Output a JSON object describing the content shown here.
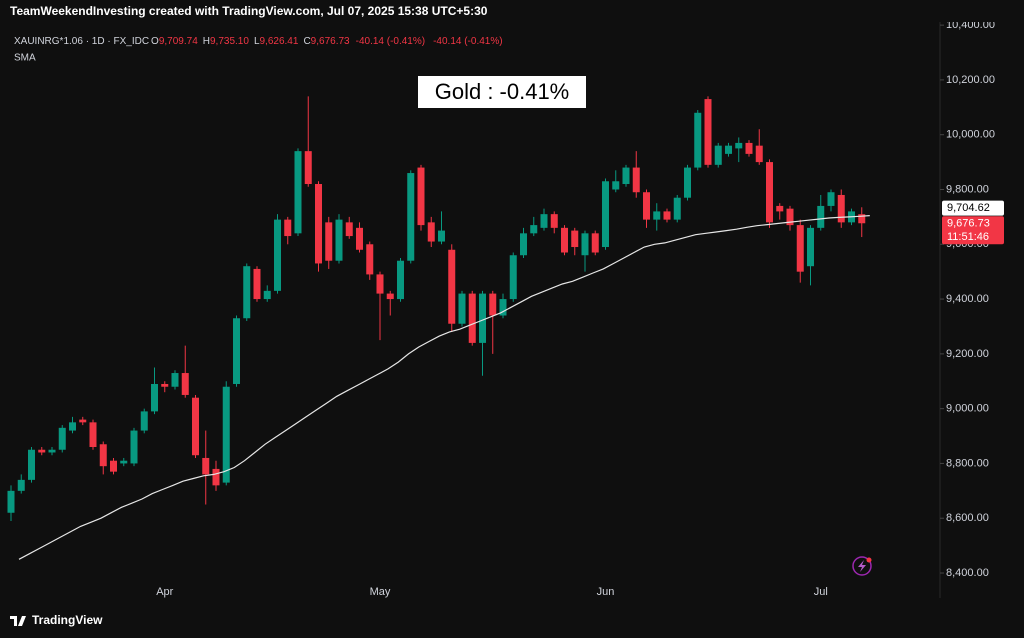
{
  "header": "TeamWeekendInvesting created with TradingView.com, Jul 07, 2025 15:38 UTC+5:30",
  "legend": {
    "symbol": "XAUINRG*1.06 · 1D · FX_IDC",
    "items": [
      {
        "key": "O",
        "value": "9,709.74"
      },
      {
        "key": "H",
        "value": "9,735.10"
      },
      {
        "key": "L",
        "value": "9,626.41"
      },
      {
        "key": "C",
        "value": "9,676.73"
      }
    ],
    "change": "-40.14 (-0.41%)",
    "change2": "-40.14 (-0.41%)",
    "indicator": "SMA"
  },
  "footer": "TradingView",
  "chart_data": {
    "type": "candlestick",
    "annotation": "Gold : -0.41%",
    "categories": [
      null,
      null,
      null,
      null,
      null,
      null,
      null,
      null,
      null,
      null,
      null,
      null,
      null,
      null,
      null,
      "Apr",
      null,
      null,
      null,
      null,
      null,
      null,
      null,
      null,
      null,
      null,
      null,
      null,
      null,
      null,
      null,
      null,
      null,
      null,
      null,
      null,
      "May",
      null,
      null,
      null,
      null,
      null,
      null,
      null,
      null,
      null,
      null,
      null,
      null,
      null,
      null,
      null,
      null,
      null,
      null,
      null,
      null,
      null,
      "Jun",
      null,
      null,
      null,
      null,
      null,
      null,
      null,
      null,
      null,
      null,
      null,
      null,
      null,
      null,
      null,
      null,
      null,
      null,
      null,
      null,
      "Jul",
      null,
      null,
      null,
      null
    ],
    "open": [
      8620,
      8700,
      8740,
      8850,
      8840,
      8850,
      8920,
      8960,
      8950,
      8870,
      8810,
      8800,
      8800,
      8920,
      8990,
      9090,
      9080,
      9130,
      9040,
      8820,
      8780,
      8730,
      9090,
      9330,
      9510,
      9400,
      9430,
      9690,
      9640,
      9940,
      9820,
      9680,
      9540,
      9680,
      9660,
      9600,
      9490,
      9420,
      9400,
      9540,
      9880,
      9680,
      9610,
      9580,
      9310,
      9420,
      9240,
      9420,
      9340,
      9400,
      9560,
      9640,
      9660,
      9710,
      9660,
      9650,
      9560,
      9640,
      9590,
      9800,
      9820,
      9880,
      9790,
      9690,
      9720,
      9690,
      9770,
      9880,
      10130,
      9890,
      9930,
      9950,
      9970,
      9960,
      9900,
      9740,
      9730,
      9670,
      9520,
      9660,
      9740,
      9780,
      9680,
      9709.74
    ],
    "high": [
      8720,
      8760,
      8860,
      8860,
      8860,
      8940,
      8970,
      8970,
      8960,
      8880,
      8820,
      8820,
      8930,
      9000,
      9150,
      9100,
      9140,
      9230,
      9050,
      8920,
      8810,
      9100,
      9340,
      9530,
      9520,
      9450,
      9710,
      9700,
      9950,
      10140,
      9830,
      9700,
      9710,
      9700,
      9680,
      9610,
      9500,
      9430,
      9550,
      9870,
      9890,
      9700,
      9720,
      9600,
      9430,
      9430,
      9430,
      9430,
      9420,
      9570,
      9660,
      9700,
      9730,
      9720,
      9670,
      9660,
      9650,
      9650,
      9840,
      9870,
      9890,
      9940,
      9800,
      9750,
      9730,
      9780,
      9890,
      10090,
      10140,
      9970,
      9970,
      9990,
      9980,
      10020,
      9910,
      9750,
      9740,
      9690,
      9670,
      9780,
      9800,
      9800,
      9730,
      9735.1
    ],
    "low": [
      8590,
      8690,
      8730,
      8830,
      8830,
      8840,
      8910,
      8940,
      8850,
      8760,
      8760,
      8790,
      8790,
      8910,
      8980,
      9060,
      9070,
      9040,
      8820,
      8650,
      8700,
      8720,
      9080,
      9320,
      9390,
      9390,
      9420,
      9600,
      9630,
      9810,
      9500,
      9510,
      9530,
      9620,
      9570,
      9470,
      9250,
      9340,
      9390,
      9530,
      9650,
      9590,
      9600,
      9280,
      9300,
      9230,
      9120,
      9200,
      9330,
      9390,
      9550,
      9630,
      9650,
      9640,
      9560,
      9560,
      9500,
      9560,
      9580,
      9790,
      9810,
      9770,
      9660,
      9650,
      9680,
      9680,
      9760,
      9870,
      9880,
      9880,
      9920,
      9900,
      9920,
      9890,
      9660,
      9690,
      9650,
      9460,
      9450,
      9650,
      9720,
      9660,
      9670,
      9626.41
    ],
    "close": [
      8700,
      8740,
      8850,
      8840,
      8850,
      8930,
      8950,
      8950,
      8860,
      8790,
      8770,
      8810,
      8920,
      8990,
      9090,
      9080,
      9130,
      9050,
      8830,
      8760,
      8720,
      9080,
      9330,
      9520,
      9400,
      9430,
      9690,
      9630,
      9940,
      9820,
      9530,
      9540,
      9690,
      9630,
      9580,
      9490,
      9420,
      9400,
      9540,
      9860,
      9670,
      9610,
      9650,
      9310,
      9420,
      9240,
      9420,
      9340,
      9400,
      9560,
      9640,
      9670,
      9710,
      9660,
      9570,
      9590,
      9640,
      9570,
      9830,
      9830,
      9880,
      9790,
      9690,
      9720,
      9690,
      9770,
      9880,
      10080,
      9890,
      9960,
      9960,
      9970,
      9930,
      9900,
      9680,
      9720,
      9670,
      9500,
      9660,
      9740,
      9790,
      9680,
      9720,
      9676.73
    ],
    "up_color": "#089981",
    "down_color": "#f23645",
    "sma": {
      "color": "#e6e6e6",
      "values": [
        8450,
        8470,
        8490,
        8510,
        8530,
        8550,
        8570,
        8585,
        8600,
        8620,
        8640,
        8655,
        8670,
        8690,
        8705,
        8720,
        8735,
        8745,
        8755,
        8760,
        8770,
        8785,
        8810,
        8840,
        8870,
        8895,
        8920,
        8945,
        8970,
        8995,
        9020,
        9045,
        9065,
        9085,
        9105,
        9125,
        9145,
        9170,
        9200,
        9225,
        9245,
        9265,
        9280,
        9290,
        9305,
        9320,
        9335,
        9350,
        9370,
        9390,
        9410,
        9425,
        9440,
        9455,
        9465,
        9480,
        9495,
        9510,
        9530,
        9550,
        9570,
        9590,
        9600,
        9605,
        9615,
        9625,
        9635,
        9640,
        9645,
        9650,
        9655,
        9662,
        9668,
        9672,
        9676,
        9680,
        9684,
        9688,
        9692,
        9696,
        9698,
        9700,
        9702,
        9704.62
      ]
    },
    "price_labels": [
      {
        "value": 9704.62,
        "label": "9,704.62",
        "color": "#ffffff"
      },
      {
        "value": 9676.73,
        "label": "9,676.73",
        "color": "#f23645"
      }
    ],
    "countdown": "11:51:46",
    "ylim": [
      8338,
      10426
    ],
    "yticks": [
      {
        "value": 8400,
        "label": "8,400.00"
      },
      {
        "value": 8600,
        "label": "8,600.00"
      },
      {
        "value": 8800,
        "label": "8,800.00"
      },
      {
        "value": 9000,
        "label": "9,000.00"
      },
      {
        "value": 9200,
        "label": "9,200.00"
      },
      {
        "value": 9400,
        "label": "9,400.00"
      },
      {
        "value": 9600,
        "label": "9,600.00"
      },
      {
        "value": 9800,
        "label": "9,800.00"
      },
      {
        "value": 10000,
        "label": "10,000.00"
      },
      {
        "value": 10200,
        "label": "10,200.00"
      },
      {
        "value": 10400,
        "label": "10,400.00"
      }
    ],
    "grid": false
  }
}
